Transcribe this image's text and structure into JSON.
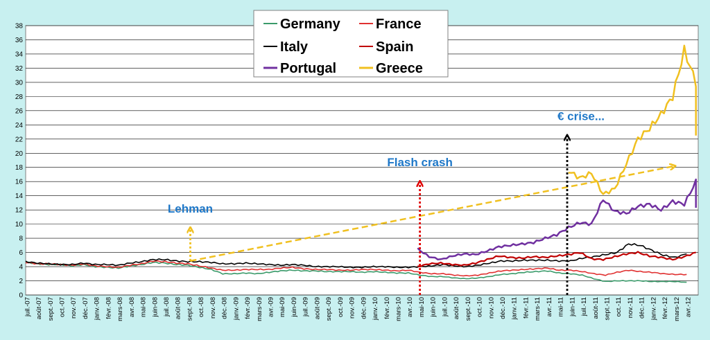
{
  "chart_data": {
    "type": "line",
    "title": "",
    "xlabel": "",
    "ylabel": "",
    "ylim": [
      0,
      38
    ],
    "yticks": [
      0,
      2,
      4,
      6,
      8,
      10,
      12,
      14,
      16,
      18,
      20,
      22,
      24,
      26,
      28,
      30,
      32,
      34,
      36,
      38
    ],
    "grid": true,
    "legend_position": "top-center",
    "x_start": "2007-07",
    "x_labels": [
      "juil.-07",
      "août-07",
      "sept.-07",
      "oct.-07",
      "nov.-07",
      "déc.-07",
      "janv.-08",
      "févr.-08",
      "mars-08",
      "avr.-08",
      "mai-08",
      "juin-08",
      "juil.-08",
      "août-08",
      "sept.-08",
      "oct.-08",
      "nov.-08",
      "déc.-08",
      "janv.-09",
      "févr.-09",
      "mars-09",
      "avr.-09",
      "mai-09",
      "juin-09",
      "juil.-09",
      "août-09",
      "sept.-09",
      "oct.-09",
      "nov.-09",
      "déc.-09",
      "janv.-10",
      "févr.-10",
      "mars-10",
      "avr.-10",
      "mai-10",
      "juin-10",
      "juil.-10",
      "août-10",
      "sept.-10",
      "oct.-10",
      "nov.-10",
      "déc.-10",
      "janv.-11",
      "févr.-11",
      "mars-11",
      "avr.-11",
      "mai-11",
      "juin-11",
      "juil.-11",
      "août-11",
      "sept.-11",
      "oct.-11",
      "nov.-11",
      "déc.-11",
      "janv.-12",
      "févr.-12",
      "mars-12",
      "avr.-12"
    ],
    "series": [
      {
        "name": "Germany",
        "color": "#3a9a6a",
        "start": 0,
        "values": [
          4.6,
          4.4,
          4.3,
          4.3,
          4.1,
          4.3,
          4.0,
          3.9,
          3.8,
          4.1,
          4.3,
          4.6,
          4.5,
          4.3,
          4.2,
          3.9,
          3.6,
          3.0,
          3.0,
          3.1,
          3.0,
          3.2,
          3.4,
          3.5,
          3.4,
          3.4,
          3.3,
          3.3,
          3.3,
          3.2,
          3.3,
          3.2,
          3.1,
          3.1,
          2.8,
          2.6,
          2.6,
          2.4,
          2.3,
          2.4,
          2.6,
          2.9,
          3.0,
          3.2,
          3.3,
          3.4,
          3.1,
          3.0,
          2.8,
          2.3,
          1.9,
          2.0,
          2.0,
          2.0,
          1.9,
          1.9,
          1.9,
          1.8
        ]
      },
      {
        "name": "France",
        "color": "#e03030",
        "start": 0,
        "values": [
          4.6,
          4.4,
          4.4,
          4.3,
          4.2,
          4.4,
          4.1,
          4.0,
          3.9,
          4.2,
          4.4,
          4.8,
          4.7,
          4.5,
          4.4,
          4.1,
          3.8,
          3.5,
          3.5,
          3.6,
          3.6,
          3.6,
          3.8,
          3.9,
          3.7,
          3.6,
          3.6,
          3.5,
          3.5,
          3.6,
          3.6,
          3.5,
          3.4,
          3.5,
          3.2,
          3.0,
          3.0,
          2.8,
          2.7,
          2.8,
          3.1,
          3.4,
          3.5,
          3.6,
          3.7,
          3.8,
          3.5,
          3.5,
          3.3,
          3.0,
          2.8,
          3.2,
          3.5,
          3.3,
          3.2,
          3.0,
          2.9,
          2.9
        ]
      },
      {
        "name": "Italy",
        "color": "#000000",
        "start": 0,
        "values": [
          4.7,
          4.5,
          4.4,
          4.3,
          4.3,
          4.5,
          4.3,
          4.3,
          4.2,
          4.5,
          4.7,
          5.0,
          5.0,
          4.8,
          4.7,
          4.7,
          4.6,
          4.4,
          4.4,
          4.5,
          4.4,
          4.3,
          4.2,
          4.3,
          4.2,
          4.0,
          4.0,
          4.0,
          3.9,
          3.9,
          4.0,
          4.0,
          3.9,
          3.9,
          4.0,
          4.1,
          4.3,
          4.1,
          4.0,
          4.2,
          4.5,
          4.8,
          4.8,
          4.9,
          4.9,
          4.9,
          4.8,
          4.8,
          5.2,
          5.4,
          5.7,
          6.0,
          7.2,
          7.0,
          6.3,
          5.6,
          5.3,
          5.8
        ]
      },
      {
        "name": "Spain",
        "color": "#c00000",
        "start": 33.8,
        "values": [
          4.0,
          4.4,
          4.5,
          4.3,
          4.2,
          4.5,
          5.0,
          5.5,
          5.3,
          5.2,
          5.4,
          5.3,
          5.5,
          5.7,
          6.0,
          5.1,
          5.0,
          5.4,
          5.8,
          6.0,
          5.5,
          5.3,
          5.0,
          5.4,
          6.0
        ]
      },
      {
        "name": "Portugal",
        "color": "#7030a0",
        "start": 33.8,
        "values": [
          6.5,
          5.4,
          5.0,
          5.5,
          5.8,
          5.7,
          6.2,
          6.8,
          7.0,
          7.2,
          7.4,
          8.0,
          8.5,
          9.5,
          10.2,
          10.0,
          13.5,
          11.8,
          11.5,
          12.5,
          12.8,
          12.0,
          13.2,
          12.8,
          16.0,
          11.5,
          12.0,
          12.3
        ]
      },
      {
        "name": "Greece",
        "color": "#f0c020",
        "start": 46.8,
        "values": [
          17.5,
          16.5,
          17.2,
          14.2,
          15.0,
          18.5,
          22.0,
          23.5,
          25.5,
          28.0,
          34.5,
          30.0,
          35.0,
          34.5,
          33.5,
          34.0,
          36.5,
          30.0,
          19.5,
          18.0,
          21.0,
          22.5
        ]
      }
    ],
    "annotations": [
      {
        "text": "Lehman",
        "x": 14.2,
        "arrow_from": 4.8,
        "arrow_to": 9.5,
        "color": "#f0c020"
      },
      {
        "text": "Flash crash",
        "x": 34.0,
        "arrow_from": 0,
        "arrow_to": 16.0,
        "color": "#e00000"
      },
      {
        "text": "€ crise...",
        "x": 46.7,
        "arrow_from": 0,
        "arrow_to": 22.5,
        "color": "#000000"
      }
    ],
    "trend_arrow": {
      "from_x": 14.2,
      "from_y": 4.8,
      "to_x": 56.0,
      "to_y": 18.2,
      "color": "#f0c020"
    }
  }
}
